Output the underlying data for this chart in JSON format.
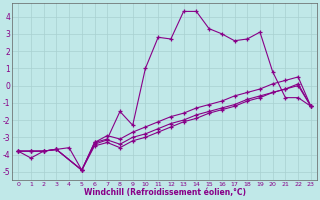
{
  "xlabel": "Windchill (Refroidissement éolien,°C)",
  "bg_color": "#c0e8e8",
  "line_color": "#880088",
  "grid_color": "#a8d0d0",
  "xlim": [
    -0.5,
    23.5
  ],
  "ylim": [
    -5.5,
    4.8
  ],
  "yticks": [
    -5,
    -4,
    -3,
    -2,
    -1,
    0,
    1,
    2,
    3,
    4
  ],
  "xticks": [
    0,
    1,
    2,
    3,
    4,
    5,
    6,
    7,
    8,
    9,
    10,
    11,
    12,
    13,
    14,
    15,
    16,
    17,
    18,
    19,
    20,
    21,
    22,
    23
  ],
  "line1_x": [
    0,
    1,
    2,
    3,
    4,
    5,
    6,
    7,
    8,
    9,
    10,
    11,
    12,
    13,
    14,
    15,
    16,
    17,
    18,
    19,
    20,
    21,
    22,
    23
  ],
  "line1_y": [
    -3.8,
    -4.2,
    -3.8,
    -3.7,
    -3.6,
    -4.9,
    -3.3,
    -3.1,
    -1.5,
    -2.3,
    1.0,
    2.8,
    2.7,
    4.3,
    4.3,
    3.3,
    3.0,
    2.6,
    2.7,
    3.1,
    0.8,
    -0.7,
    -0.7,
    -1.2
  ],
  "line2_x": [
    0,
    1,
    2,
    3,
    5,
    6,
    7,
    8,
    9,
    10,
    11,
    12,
    13,
    14,
    15,
    16,
    17,
    18,
    19,
    20,
    21,
    22,
    23
  ],
  "line2_y": [
    -3.8,
    -3.8,
    -3.8,
    -3.7,
    -4.9,
    -3.4,
    -3.15,
    -3.4,
    -3.0,
    -2.8,
    -2.5,
    -2.2,
    -2.0,
    -1.7,
    -1.5,
    -1.3,
    -1.1,
    -0.8,
    -0.6,
    -0.4,
    -0.2,
    -0.0,
    -1.2
  ],
  "line3_x": [
    0,
    1,
    2,
    3,
    5,
    6,
    7,
    8,
    9,
    10,
    11,
    12,
    13,
    14,
    15,
    16,
    17,
    18,
    19,
    20,
    21,
    22,
    23
  ],
  "line3_y": [
    -3.8,
    -3.8,
    -3.8,
    -3.7,
    -4.9,
    -3.3,
    -2.9,
    -3.1,
    -2.7,
    -2.4,
    -2.1,
    -1.8,
    -1.6,
    -1.3,
    -1.1,
    -0.9,
    -0.6,
    -0.4,
    -0.2,
    0.1,
    0.3,
    0.5,
    -1.2
  ],
  "line4_x": [
    0,
    1,
    2,
    3,
    5,
    6,
    7,
    8,
    9,
    10,
    11,
    12,
    13,
    14,
    15,
    16,
    17,
    18,
    19,
    20,
    21,
    22,
    23
  ],
  "line4_y": [
    -3.8,
    -3.8,
    -3.8,
    -3.7,
    -4.9,
    -3.5,
    -3.3,
    -3.6,
    -3.2,
    -3.0,
    -2.7,
    -2.4,
    -2.1,
    -1.9,
    -1.6,
    -1.4,
    -1.2,
    -0.9,
    -0.7,
    -0.4,
    -0.2,
    0.1,
    -1.2
  ]
}
